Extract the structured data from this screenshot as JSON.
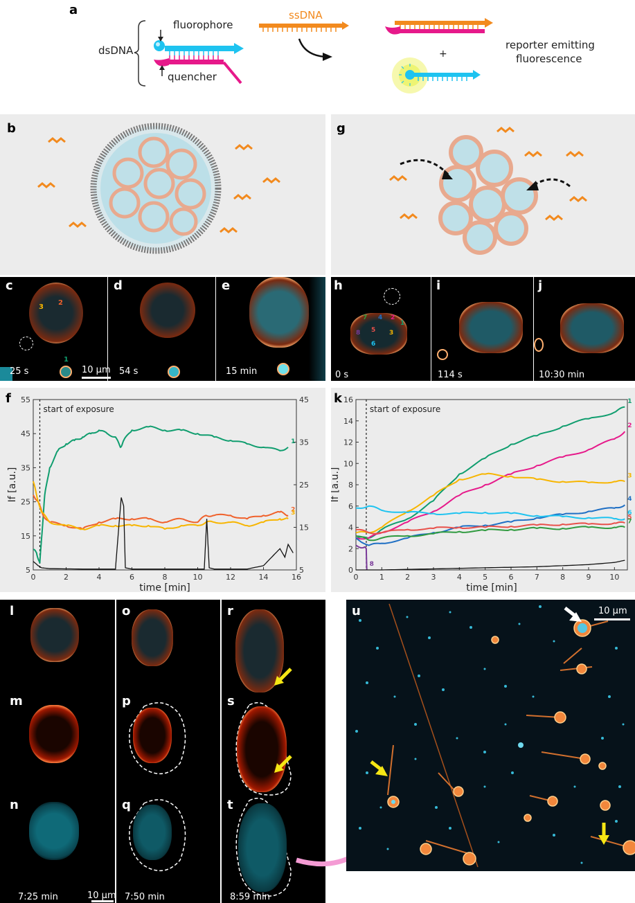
{
  "panel_letters": {
    "a": "a",
    "b": "b",
    "c": "c",
    "d": "d",
    "e": "e",
    "f": "f",
    "g": "g",
    "h": "h",
    "i": "i",
    "j": "j",
    "k": "k",
    "l": "l",
    "m": "m",
    "n": "n",
    "o": "o",
    "p": "p",
    "q": "q",
    "r": "r",
    "s": "s",
    "t": "t",
    "u": "u"
  },
  "schematic_a": {
    "dsdna_label": "dsDNA",
    "fluorophore_label": "fluorophore",
    "quencher_label": "quencher",
    "ssdna_label": "ssDNA",
    "plus": "+",
    "reporter_line1": "reporter emitting",
    "reporter_line2": "fluorescence"
  },
  "microscopy_cde": {
    "time_c": "25 s",
    "time_d": "54 s",
    "time_e": "15 min",
    "scalebar": "10 µm",
    "vesicle_numbers": [
      "1",
      "2",
      "3"
    ]
  },
  "microscopy_hij": {
    "time_h": "0 s",
    "time_i": "114 s",
    "time_j": "10:30 min",
    "vesicle_numbers": [
      "1",
      "2",
      "3",
      "4",
      "5",
      "6",
      "7",
      "8"
    ]
  },
  "microscopy_lt": {
    "time_l": "7:25 min",
    "time_o": "7:50 min",
    "time_r": "8:59 min",
    "scalebar": "10 µm"
  },
  "microscopy_u": {
    "scalebar": "10 µm"
  },
  "colors": {
    "green": "#0f9d6e",
    "orange": "#f0612b",
    "yellow": "#f7b500",
    "magenta": "#e6198a",
    "cyan": "#1ec3f0",
    "blue": "#1f6fc4",
    "red": "#e8504a",
    "darkgreen": "#2f9a3f",
    "purple": "#7a3a9a",
    "black": "#111111",
    "ssdna_orange": "#f28a1e"
  },
  "chart_data": [
    {
      "type": "line",
      "panel": "f",
      "annotation": "start of exposure",
      "xlabel": "time [min]",
      "ylabel": "If [a.u.]",
      "xlim": [
        0,
        16
      ],
      "ylim": [
        5,
        55
      ],
      "y2lim": [
        5,
        45
      ],
      "xticks": [
        "0",
        "2",
        "4",
        "6",
        "8",
        "10",
        "12",
        "14",
        "16"
      ],
      "yticks": [
        "5",
        "15",
        "25",
        "35",
        "45",
        "55"
      ],
      "y2ticks": [
        "5",
        "15",
        "25",
        "35",
        "45"
      ],
      "exposure_x": 0.4,
      "series": [
        {
          "name": "1",
          "color": "#0f9d6e",
          "axis": "left",
          "x": [
            0,
            0.2,
            0.4,
            0.5,
            0.7,
            1.0,
            1.5,
            2.0,
            2.5,
            3.0,
            3.5,
            4.0,
            4.5,
            5.0,
            5.3,
            5.5,
            6.0,
            7.0,
            8.0,
            9.0,
            10.0,
            11.0,
            12.0,
            13.0,
            14.0,
            15.0,
            15.5
          ],
          "y": [
            11,
            10,
            7,
            14,
            27,
            35,
            40,
            42,
            43,
            44,
            45,
            46,
            45,
            44,
            41,
            43,
            46,
            47,
            46,
            46,
            45,
            44,
            43,
            42,
            41,
            40,
            41
          ]
        },
        {
          "name": "2",
          "color": "#f0612b",
          "axis": "left",
          "x": [
            0,
            0.3,
            0.6,
            1.0,
            2.0,
            3.0,
            4.0,
            5.0,
            6.0,
            7.0,
            8.0,
            9.0,
            10.0,
            10.5,
            11.0,
            12.0,
            13.0,
            14.0,
            15.0,
            15.5
          ],
          "y": [
            27,
            25,
            21,
            19,
            18,
            17,
            19,
            20,
            20,
            20,
            19,
            20,
            19,
            21,
            21,
            21,
            20,
            21,
            22,
            21
          ]
        },
        {
          "name": "3",
          "color": "#f7b500",
          "axis": "left",
          "x": [
            0,
            0.2,
            0.5,
            1.0,
            2.0,
            3.0,
            4.0,
            5.0,
            6.0,
            7.0,
            8.0,
            9.0,
            10.0,
            10.5,
            11.0,
            12.0,
            13.0,
            14.0,
            15.0,
            15.5
          ],
          "y": [
            31,
            27,
            22,
            19,
            18,
            17,
            18,
            18,
            18,
            18,
            17,
            18,
            18,
            19,
            19,
            19,
            18,
            19,
            20,
            20
          ]
        },
        {
          "name": "",
          "color": "#111111",
          "axis": "right",
          "x": [
            0,
            0.3,
            0.5,
            1.0,
            3.0,
            5.0,
            5.2,
            5.35,
            5.5,
            5.6,
            6.0,
            8.0,
            10.4,
            10.55,
            10.7,
            11.0,
            13.0,
            14.0,
            14.5,
            15.0,
            15.3,
            15.5,
            15.8
          ],
          "y": [
            7,
            6,
            5.5,
            5.3,
            5.2,
            5.2,
            15,
            22,
            20,
            5.5,
            5.2,
            5.2,
            5.2,
            17,
            5.5,
            5.2,
            5.2,
            6,
            8,
            10,
            8,
            11,
            9
          ]
        }
      ]
    },
    {
      "type": "line",
      "panel": "k",
      "annotation": "start of exposure",
      "xlabel": "time [min]",
      "ylabel": "If [a.u.]",
      "xlim": [
        0,
        10.5
      ],
      "ylim": [
        0,
        16
      ],
      "xticks": [
        "0",
        "1",
        "2",
        "3",
        "4",
        "5",
        "6",
        "7",
        "8",
        "9",
        "10"
      ],
      "yticks": [
        "0",
        "2",
        "4",
        "6",
        "8",
        "10",
        "12",
        "14",
        "16"
      ],
      "exposure_x": 0.4,
      "series": [
        {
          "name": "1",
          "color": "#0f9d6e",
          "x": [
            0,
            0.5,
            1,
            2,
            3,
            4,
            5,
            6,
            7,
            8,
            9,
            10,
            10.4
          ],
          "y": [
            3,
            3,
            3.8,
            4.8,
            6.5,
            9,
            10.5,
            11.8,
            12.6,
            13.5,
            14.2,
            14.8,
            15.3
          ]
        },
        {
          "name": "2",
          "color": "#e6198a",
          "x": [
            0,
            0.5,
            1,
            2,
            3,
            4,
            5,
            6,
            7,
            8,
            9,
            10,
            10.4
          ],
          "y": [
            3,
            3,
            3.5,
            4.5,
            5.5,
            7,
            8,
            9,
            9.8,
            10.6,
            11.3,
            12.3,
            13
          ]
        },
        {
          "name": "3",
          "color": "#f7b500",
          "x": [
            0,
            0.5,
            1,
            2,
            3,
            4,
            5,
            6,
            7,
            8,
            9,
            10,
            10.4
          ],
          "y": [
            3.5,
            3.5,
            4,
            5.5,
            7,
            8.5,
            9,
            8.8,
            8.5,
            8.3,
            8.2,
            8.3,
            8.3
          ]
        },
        {
          "name": "4",
          "color": "#1f6fc4",
          "x": [
            0,
            0.5,
            1,
            2,
            3,
            4,
            5,
            6,
            7,
            8,
            9,
            10,
            10.4
          ],
          "y": [
            3,
            2.3,
            2.5,
            3,
            3.5,
            4,
            4.2,
            4.5,
            4.9,
            5.2,
            5.5,
            5.8,
            6.1
          ]
        },
        {
          "name": "5",
          "color": "#e8504a",
          "x": [
            0,
            0.5,
            1,
            2,
            3,
            4,
            5,
            6,
            7,
            8,
            9,
            10,
            10.4
          ],
          "y": [
            3.8,
            3.5,
            3.5,
            3.8,
            3.9,
            4,
            4,
            4.1,
            4.2,
            4.3,
            4.3,
            4.4,
            4.4
          ]
        },
        {
          "name": "6",
          "color": "#1ec3f0",
          "x": [
            0,
            0.5,
            1,
            2,
            3,
            4,
            5,
            6,
            7,
            8,
            9,
            10,
            10.4
          ],
          "y": [
            5.8,
            6,
            5.6,
            5.4,
            5.3,
            5.3,
            5.4,
            5.3,
            5.1,
            5,
            4.9,
            4.8,
            4.8
          ]
        },
        {
          "name": "7",
          "color": "#2f9a3f",
          "x": [
            0,
            0.5,
            1,
            2,
            3,
            4,
            5,
            6,
            7,
            8,
            9,
            10,
            10.4
          ],
          "y": [
            3.2,
            2.8,
            3,
            3.2,
            3.4,
            3.6,
            3.7,
            3.8,
            3.9,
            3.9,
            4,
            4,
            4
          ]
        },
        {
          "name": "8",
          "color": "#7a3a9a",
          "x": [
            0,
            0.3,
            0.4,
            0.42
          ],
          "y": [
            2.3,
            2.1,
            2.0,
            0
          ]
        },
        {
          "name": "",
          "color": "#111111",
          "x": [
            0,
            1,
            2,
            3,
            4,
            5,
            6,
            7,
            8,
            9,
            10,
            10.4
          ],
          "y": [
            0,
            0,
            0.05,
            0.1,
            0.15,
            0.2,
            0.25,
            0.3,
            0.4,
            0.5,
            0.7,
            0.9
          ]
        }
      ]
    }
  ]
}
